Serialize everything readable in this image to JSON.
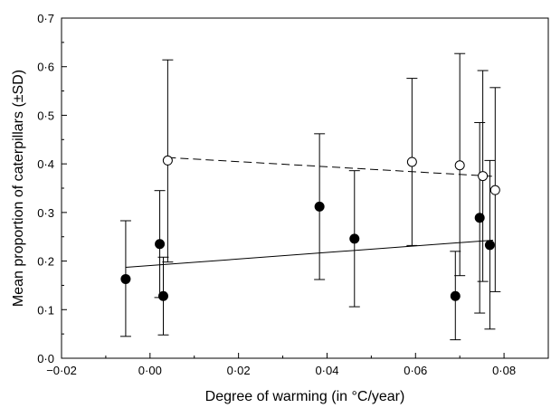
{
  "chart_data": {
    "type": "scatter",
    "title": "",
    "xlabel": "Degree of warming (in °C/year)",
    "ylabel": "Mean proportion of caterpillars (±SD)",
    "xlim": [
      -0.02,
      0.09
    ],
    "ylim": [
      0,
      0.7
    ],
    "xticks": [
      -0.02,
      0.0,
      0.02,
      0.04,
      0.06,
      0.08
    ],
    "xtick_labels": [
      "−0·02",
      "0·00",
      "0·02",
      "0·04",
      "0·06",
      "0·08"
    ],
    "yticks": [
      0,
      0.1,
      0.2,
      0.3,
      0.4,
      0.5,
      0.6,
      0.7
    ],
    "ytick_labels": [
      "0·0",
      "0·1",
      "0·2",
      "0·3",
      "0·4",
      "0·5",
      "0·6",
      "0·7"
    ],
    "grid": false,
    "series": [
      {
        "marker": "filled-circle",
        "color": "#000000",
        "points": [
          {
            "x": -0.0055,
            "y": 0.163,
            "lo": 0.045,
            "hi": 0.283
          },
          {
            "x": 0.0022,
            "y": 0.235,
            "lo": 0.125,
            "hi": 0.345
          },
          {
            "x": 0.003,
            "y": 0.128,
            "lo": 0.048,
            "hi": 0.208
          },
          {
            "x": 0.0383,
            "y": 0.312,
            "lo": 0.162,
            "hi": 0.462
          },
          {
            "x": 0.0462,
            "y": 0.246,
            "lo": 0.106,
            "hi": 0.386
          },
          {
            "x": 0.069,
            "y": 0.128,
            "lo": 0.038,
            "hi": 0.22
          },
          {
            "x": 0.0745,
            "y": 0.289,
            "lo": 0.093,
            "hi": 0.485
          },
          {
            "x": 0.0768,
            "y": 0.233,
            "lo": 0.06,
            "hi": 0.407
          }
        ],
        "fit_line": {
          "style": "solid",
          "x": [
            -0.0055,
            0.0775
          ],
          "y": [
            0.187,
            0.243
          ]
        }
      },
      {
        "marker": "open-circle",
        "color": "#000000",
        "points": [
          {
            "x": 0.004,
            "y": 0.407,
            "lo": 0.198,
            "hi": 0.614
          },
          {
            "x": 0.0592,
            "y": 0.404,
            "lo": 0.232,
            "hi": 0.576
          },
          {
            "x": 0.07,
            "y": 0.397,
            "lo": 0.17,
            "hi": 0.627
          },
          {
            "x": 0.0752,
            "y": 0.375,
            "lo": 0.158,
            "hi": 0.592
          },
          {
            "x": 0.078,
            "y": 0.346,
            "lo": 0.137,
            "hi": 0.557
          }
        ],
        "fit_line": {
          "style": "dashed",
          "x": [
            0.004,
            0.0782
          ],
          "y": [
            0.413,
            0.374
          ]
        }
      }
    ]
  }
}
